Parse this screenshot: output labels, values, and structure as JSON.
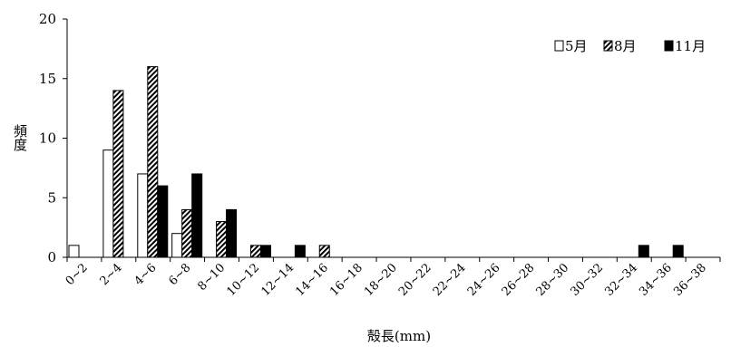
{
  "chart_data": {
    "type": "bar",
    "title": "",
    "xlabel": "殻長(mm)",
    "ylabel": "頻度",
    "ylim": [
      0,
      20
    ],
    "yticks": [
      0,
      5,
      10,
      15,
      20
    ],
    "grid": false,
    "legend_position": "top-right",
    "categories": [
      "0~2",
      "2~4",
      "4~6",
      "6~8",
      "8~10",
      "10~12",
      "12~14",
      "14~16",
      "16~18",
      "18~20",
      "20~22",
      "22~24",
      "24~26",
      "26~28",
      "28~30",
      "30~32",
      "32~34",
      "34~36",
      "36~38"
    ],
    "series": [
      {
        "name": "5月",
        "pattern": "white",
        "values": [
          1,
          9,
          7,
          2,
          0,
          0,
          0,
          0,
          0,
          0,
          0,
          0,
          0,
          0,
          0,
          0,
          0,
          0,
          0
        ]
      },
      {
        "name": "8月",
        "pattern": "hatched",
        "values": [
          0,
          14,
          16,
          4,
          3,
          1,
          0,
          1,
          0,
          0,
          0,
          0,
          0,
          0,
          0,
          0,
          0,
          0,
          0
        ]
      },
      {
        "name": "11月",
        "pattern": "black",
        "values": [
          0,
          0,
          6,
          7,
          4,
          1,
          1,
          0,
          0,
          0,
          0,
          0,
          0,
          0,
          0,
          0,
          1,
          1,
          0
        ]
      }
    ]
  }
}
